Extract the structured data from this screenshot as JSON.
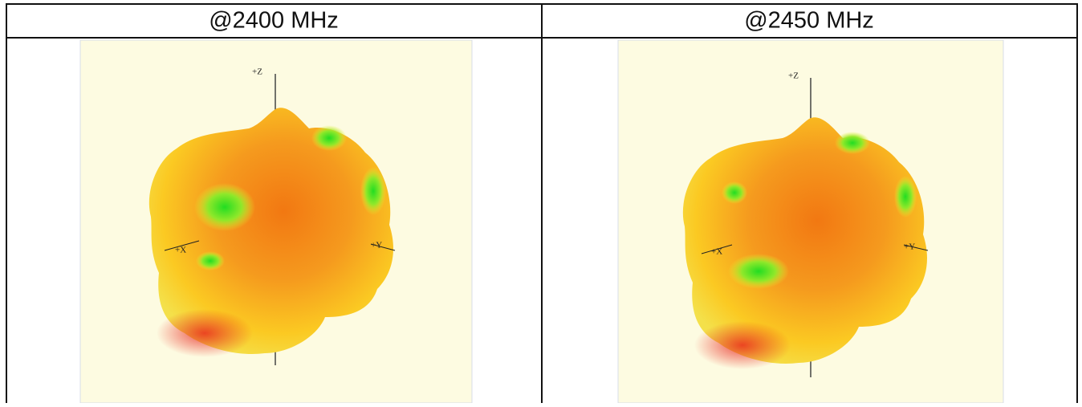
{
  "table": {
    "headers": [
      "@2400 MHz",
      "@2450 MHz"
    ],
    "plots": [
      {
        "axis_labels": [
          "+Z",
          "+X",
          "+Y"
        ]
      },
      {
        "axis_labels": [
          "+Z",
          "+X",
          "+Y"
        ]
      }
    ]
  }
}
